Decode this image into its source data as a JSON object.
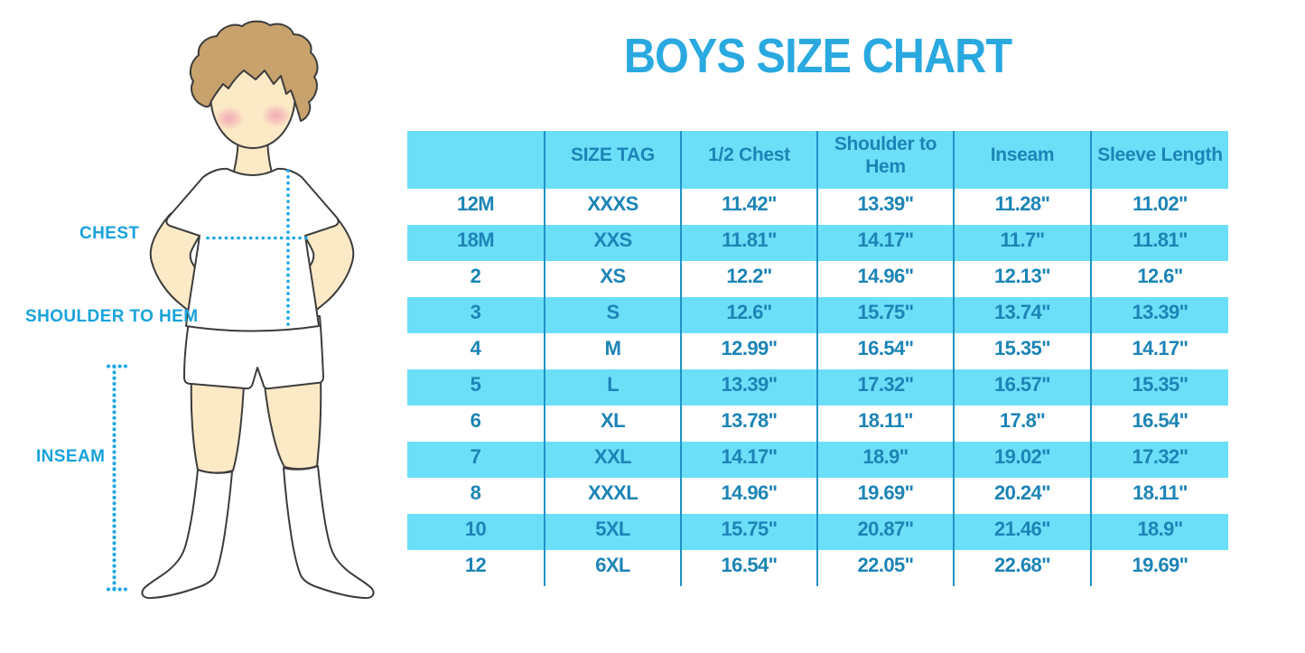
{
  "title": "BOYS SIZE CHART",
  "figure": {
    "labels": {
      "chest": "CHEST",
      "shoulder_to_hem": "SHOULDER TO HEM",
      "inseam": "INSEAM"
    }
  },
  "chart_data": {
    "type": "table",
    "title": "BOYS SIZE CHART",
    "columns": [
      "",
      "SIZE TAG",
      "1/2 Chest",
      "Shoulder to Hem",
      "Inseam",
      "Sleeve Length"
    ],
    "rows": [
      [
        "12M",
        "XXXS",
        "11.42\"",
        "13.39\"",
        "11.28\"",
        "11.02\""
      ],
      [
        "18M",
        "XXS",
        "11.81\"",
        "14.17\"",
        "11.7\"",
        "11.81\""
      ],
      [
        "2",
        "XS",
        "12.2\"",
        "14.96\"",
        "12.13\"",
        "12.6\""
      ],
      [
        "3",
        "S",
        "12.6\"",
        "15.75\"",
        "13.74\"",
        "13.39\""
      ],
      [
        "4",
        "M",
        "12.99\"",
        "16.54\"",
        "15.35\"",
        "14.17\""
      ],
      [
        "5",
        "L",
        "13.39\"",
        "17.32\"",
        "16.57\"",
        "15.35\""
      ],
      [
        "6",
        "XL",
        "13.78\"",
        "18.11\"",
        "17.8\"",
        "16.54\""
      ],
      [
        "7",
        "XXL",
        "14.17\"",
        "18.9\"",
        "19.02\"",
        "17.32\""
      ],
      [
        "8",
        "XXXL",
        "14.96\"",
        "19.69\"",
        "20.24\"",
        "18.11\""
      ],
      [
        "10",
        "5XL",
        "15.75\"",
        "20.87\"",
        "21.46\"",
        "18.9\""
      ],
      [
        "12",
        "6XL",
        "16.54\"",
        "22.05\"",
        "22.68\"",
        "19.69\""
      ]
    ],
    "layout": {
      "striped": "header and every second data row are cyan, others white",
      "grid": "vertical dividers only"
    }
  },
  "colors": {
    "title": "#29A9E0",
    "measure_labels": "#18A2DB",
    "dotted_lines": "#1BA7E2",
    "table_fill": "#6CDFF8",
    "table_divider": "#1F93C7",
    "table_text": "#1C84B6",
    "skin": "#FCE9C5",
    "hair": "#C7A26C",
    "blush": "#F2A3B6"
  }
}
